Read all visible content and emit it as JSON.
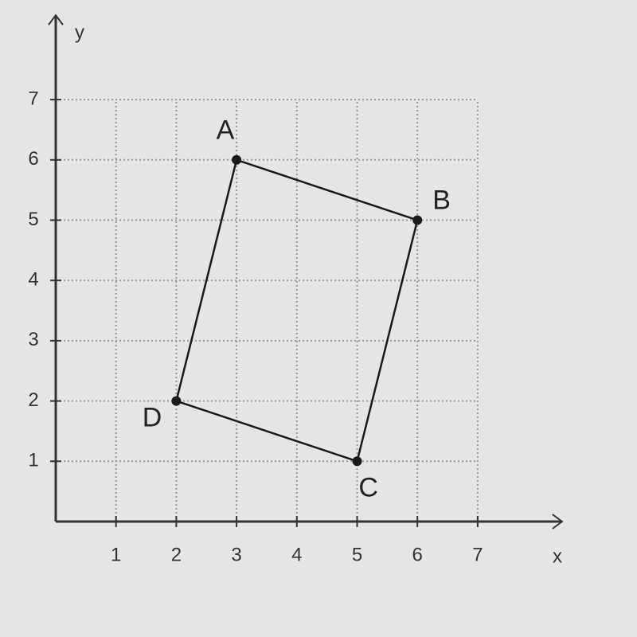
{
  "chart_data": {
    "type": "scatter",
    "x": [
      3,
      6,
      5,
      2
    ],
    "values": [
      6,
      5,
      1,
      2
    ],
    "point_labels": [
      "A",
      "B",
      "C",
      "D"
    ],
    "closed": true,
    "color": "#1a1a1a",
    "xlabel": "x",
    "ylabel": "y",
    "xlim": [
      0,
      8.4
    ],
    "ylim": [
      0,
      8.4
    ],
    "xticks": [
      1,
      2,
      3,
      4,
      5,
      6,
      7
    ],
    "yticks": [
      1,
      2,
      3,
      4,
      5,
      6,
      7
    ],
    "grid": true
  }
}
